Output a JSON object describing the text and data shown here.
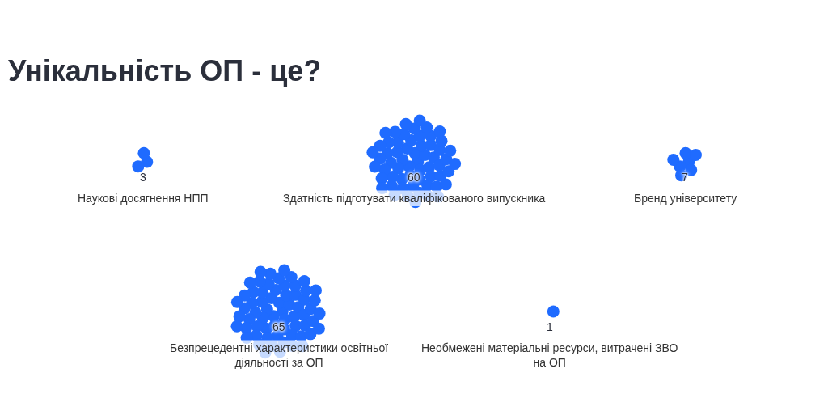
{
  "chart_data": {
    "type": "other",
    "title": "Унікальність ОП - це?",
    "categories": [
      "Наукові досягнення НПП",
      "Здатність підготувати кваліфікованого випускника",
      "Бренд університету",
      "Безпрецедентні характеристики освітньої діяльності за ОП",
      "Необмежені матеріальні ресурси, витрачені ЗВО на ОП"
    ],
    "values": [
      3,
      60,
      7,
      65,
      1
    ],
    "color": "#1f6bff",
    "data_labels": true
  }
}
